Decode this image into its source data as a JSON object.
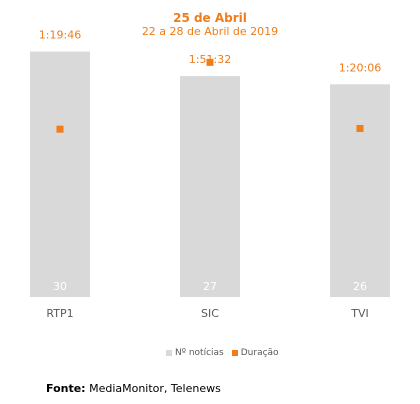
{
  "header": {
    "title": "25 de Abril",
    "subtitle": "22 a 28 de Abril de 2019"
  },
  "chart_data": {
    "type": "bar",
    "categories": [
      "RTP1",
      "SIC",
      "TVI"
    ],
    "series": [
      {
        "name": "Nº notícias",
        "kind": "bar",
        "values": [
          30,
          27,
          26
        ],
        "data_labels": [
          "30",
          "27",
          "26"
        ]
      },
      {
        "name": "Duração",
        "kind": "marker",
        "values_seconds": [
          4786,
          6692,
          4806
        ],
        "data_labels": [
          "1:19:46",
          "1:51:32",
          "1:20:06"
        ]
      }
    ],
    "title": "25 de Abril",
    "subtitle": "22 a 28 de Abril de 2019",
    "bar_ylim": [
      0,
      33
    ],
    "duration_ylim_seconds": [
      0,
      7700
    ],
    "grid": false,
    "legend_position": "bottom"
  },
  "colors": {
    "bar": "#d9d9d9",
    "marker": "#f07c1a",
    "title": "#f07c1a",
    "axis_label": "#595959",
    "bar_label": "#ffffff"
  },
  "legend": {
    "bars_label": "Nº notícias",
    "markers_label": "Duração"
  },
  "source": {
    "label": "Fonte:",
    "text": " MediaMonitor, Telenews"
  }
}
